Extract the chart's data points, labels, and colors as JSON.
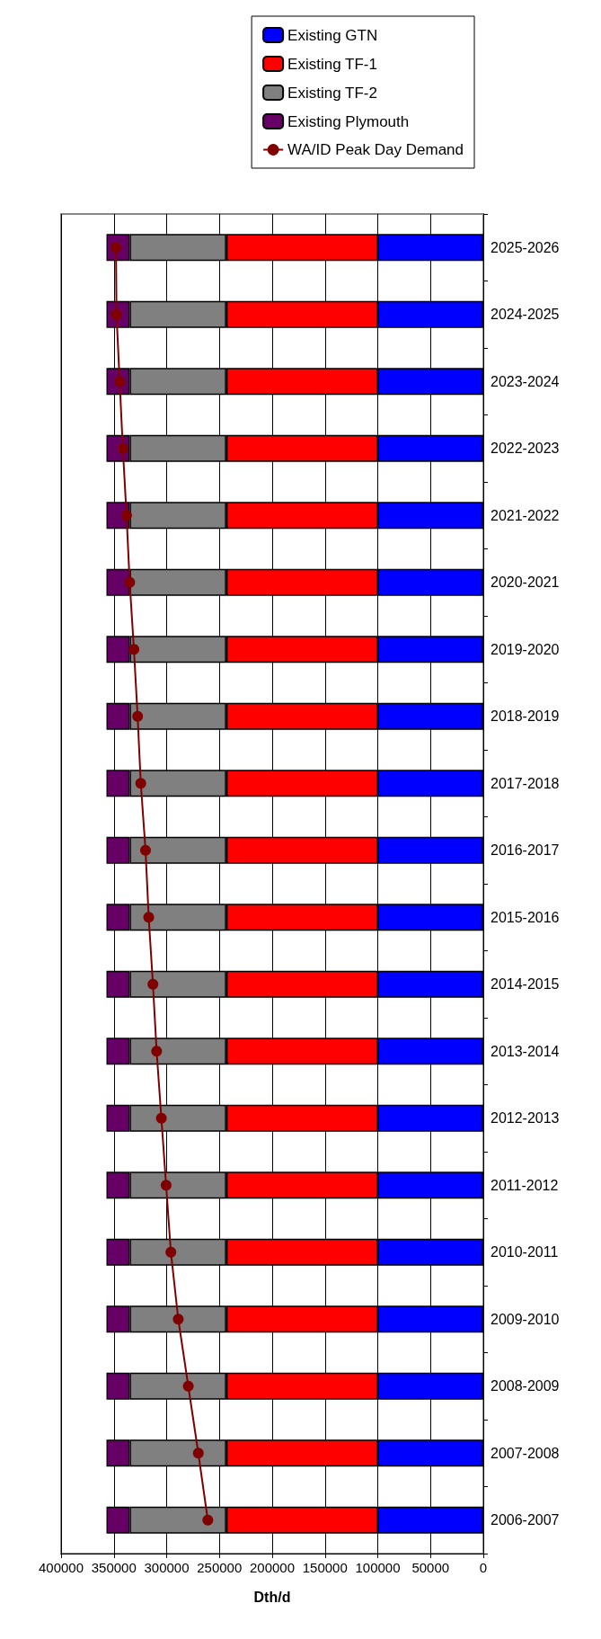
{
  "chart_data": {
    "type": "bar",
    "orientation": "horizontal",
    "stacked": true,
    "xlabel": "Dth/d",
    "categories": [
      "2025-2026",
      "2024-2025",
      "2023-2024",
      "2022-2023",
      "2021-2022",
      "2020-2021",
      "2019-2020",
      "2018-2019",
      "2017-2018",
      "2016-2017",
      "2015-2016",
      "2014-2015",
      "2013-2014",
      "2012-2013",
      "2011-2012",
      "2010-2011",
      "2009-2010",
      "2008-2009",
      "2007-2008",
      "2006-2007"
    ],
    "series": [
      {
        "name": "Existing GTN",
        "color": "#0000ff",
        "values": [
          100000,
          100000,
          100000,
          100000,
          100000,
          100000,
          100000,
          100000,
          100000,
          100000,
          100000,
          100000,
          100000,
          100000,
          100000,
          100000,
          100000,
          100000,
          100000,
          100000
        ]
      },
      {
        "name": "Existing TF-1",
        "color": "#ff0000",
        "values": [
          143500,
          143500,
          143500,
          143500,
          143500,
          143500,
          143500,
          143500,
          143500,
          143500,
          143500,
          143500,
          143500,
          143500,
          143500,
          143500,
          143500,
          143500,
          143500,
          143500
        ]
      },
      {
        "name": "Existing TF-2",
        "color": "#808080",
        "values": [
          91500,
          91500,
          91500,
          91500,
          91500,
          91500,
          91500,
          91500,
          91500,
          91500,
          91500,
          91500,
          91500,
          91500,
          91500,
          91500,
          91500,
          91500,
          91500,
          91500
        ]
      },
      {
        "name": "Existing Plymouth",
        "color": "#660066",
        "values": [
          22000,
          22000,
          22000,
          22000,
          22000,
          22000,
          22000,
          22000,
          22000,
          22000,
          22000,
          22000,
          22000,
          22000,
          22000,
          22000,
          22000,
          22000,
          22000,
          22000
        ]
      },
      {
        "name": "WA/ID Peak Day Demand",
        "type": "line",
        "color": "#800000",
        "marker": "circle",
        "values": [
          348000,
          347500,
          344500,
          341500,
          338000,
          335000,
          331000,
          327500,
          324500,
          320000,
          317000,
          313000,
          309500,
          305000,
          300500,
          296000,
          289000,
          279500,
          270000,
          261000
        ]
      }
    ],
    "xlim": [
      400000,
      0
    ],
    "xticks": [
      400000,
      350000,
      300000,
      250000,
      200000,
      150000,
      100000,
      50000,
      0
    ],
    "grid": "x",
    "legend": "top right"
  }
}
